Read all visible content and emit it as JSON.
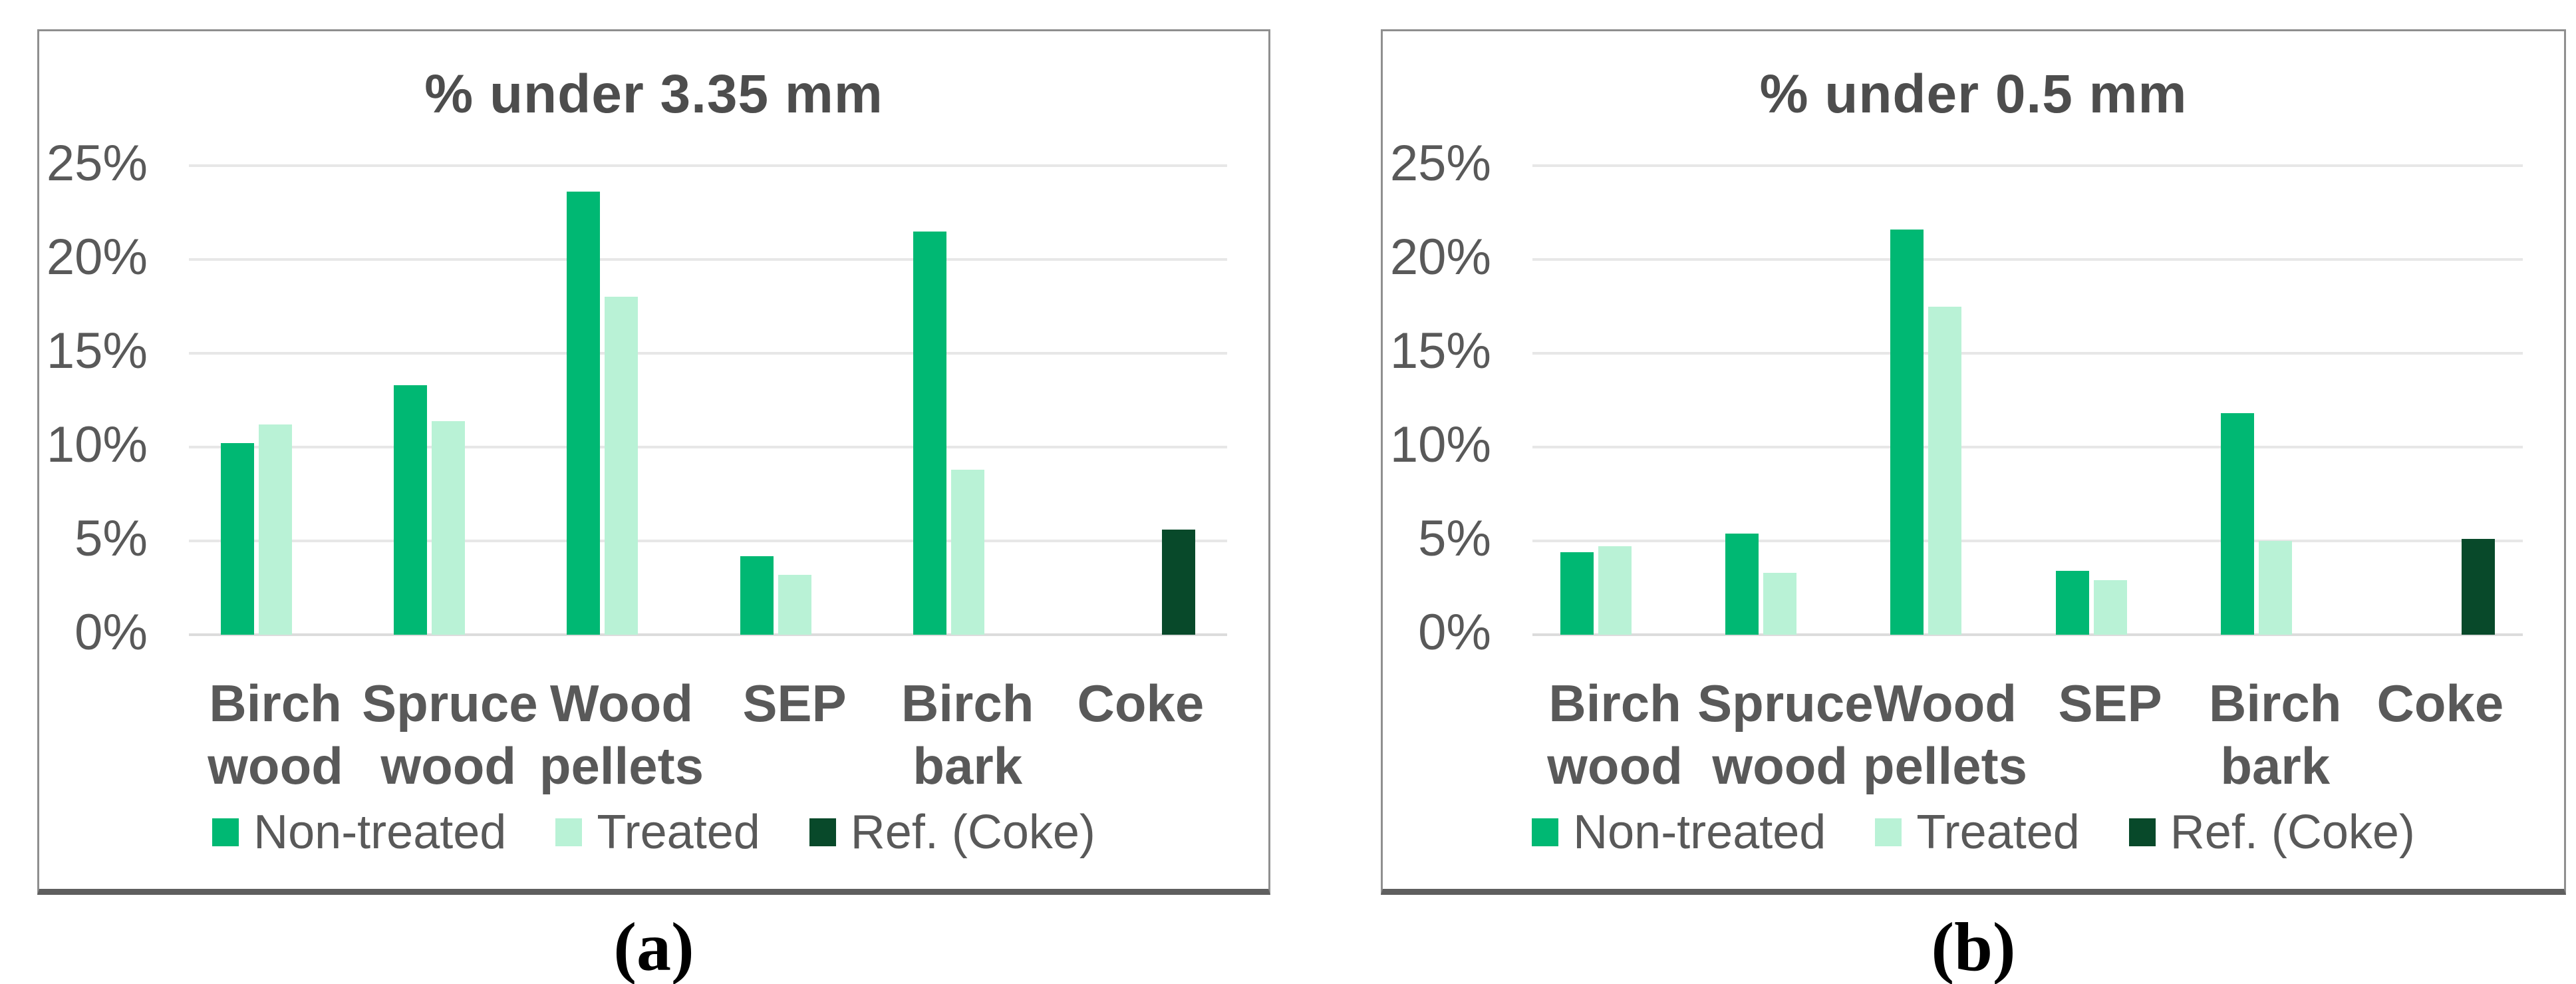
{
  "panels": [
    {
      "caption": "(a)"
    },
    {
      "caption": "(b)"
    }
  ],
  "colors": {
    "non_treated": "#00B873",
    "treated": "#B9F2D6",
    "ref_coke": "#08492A",
    "gridline": "#E7E7E7",
    "zero_line": "#DCDCDC",
    "text": "#595959",
    "title_text": "#4D4D4D",
    "panel_border": "#8F8F8F",
    "panel_border_bottom": "#5F5F5F"
  },
  "chart_data": [
    {
      "type": "bar",
      "title": "% under 3.35 mm",
      "categories": [
        "Birch wood",
        "Spruce wood",
        "Wood pellets",
        "SEP",
        "Birch bark",
        "Coke"
      ],
      "category_lines": [
        [
          "Birch",
          "wood"
        ],
        [
          "Spruce",
          "wood"
        ],
        [
          "Wood",
          "pellets"
        ],
        [
          "SEP"
        ],
        [
          "Birch",
          "bark"
        ],
        [
          "Coke"
        ]
      ],
      "series": [
        {
          "name": "Non-treated",
          "color_key": "non_treated",
          "values": [
            10.2,
            13.3,
            23.6,
            4.2,
            21.5,
            null
          ]
        },
        {
          "name": "Treated",
          "color_key": "treated",
          "values": [
            11.2,
            11.4,
            18.0,
            3.2,
            8.8,
            null
          ]
        },
        {
          "name": "Ref. (Coke)",
          "color_key": "ref_coke",
          "values": [
            null,
            null,
            null,
            null,
            null,
            5.6
          ]
        }
      ],
      "ylim": [
        0,
        25
      ],
      "ytick_step": 5,
      "yticks": [
        "0%",
        "5%",
        "10%",
        "15%",
        "20%",
        "25%"
      ],
      "grid": true,
      "legend_position": "bottom"
    },
    {
      "type": "bar",
      "title": "% under 0.5 mm",
      "categories": [
        "Birch wood",
        "Spruce wood",
        "Wood pellets",
        "SEP",
        "Birch bark",
        "Coke"
      ],
      "category_lines": [
        [
          "Birch",
          "wood"
        ],
        [
          "Spruce",
          "wood"
        ],
        [
          "Wood",
          "pellets"
        ],
        [
          "SEP"
        ],
        [
          "Birch",
          "bark"
        ],
        [
          "Coke"
        ]
      ],
      "series": [
        {
          "name": "Non-treated",
          "color_key": "non_treated",
          "values": [
            4.4,
            5.4,
            21.6,
            3.4,
            11.8,
            null
          ]
        },
        {
          "name": "Treated",
          "color_key": "treated",
          "values": [
            4.7,
            3.3,
            17.5,
            2.9,
            5.0,
            null
          ]
        },
        {
          "name": "Ref. (Coke)",
          "color_key": "ref_coke",
          "values": [
            null,
            null,
            null,
            null,
            null,
            5.1
          ]
        }
      ],
      "ylim": [
        0,
        25
      ],
      "ytick_step": 5,
      "yticks": [
        "0%",
        "5%",
        "10%",
        "15%",
        "20%",
        "25%"
      ],
      "grid": true,
      "legend_position": "bottom"
    }
  ]
}
